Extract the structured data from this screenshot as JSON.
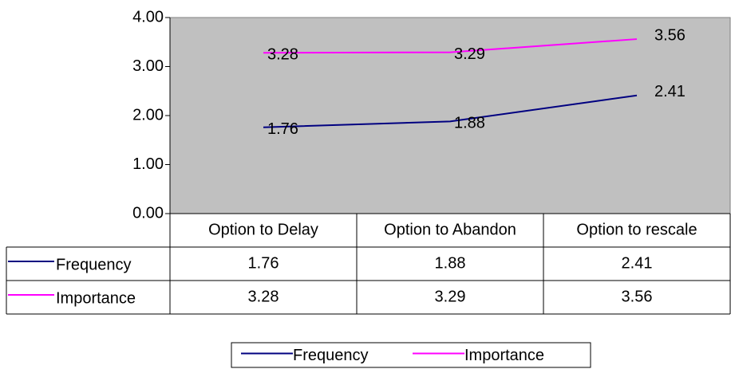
{
  "chart_data": {
    "type": "line",
    "categories": [
      "Option to Delay",
      "Option to Abandon",
      "Option to rescale"
    ],
    "series": [
      {
        "name": "Frequency",
        "color": "#000080",
        "values": [
          1.76,
          1.88,
          2.41
        ]
      },
      {
        "name": "Importance",
        "color": "#ff00ff",
        "values": [
          3.28,
          3.29,
          3.56
        ]
      }
    ],
    "ylim": [
      0,
      4
    ],
    "yticks": [
      {
        "value": 0,
        "label": "0.00"
      },
      {
        "value": 1,
        "label": "1.00"
      },
      {
        "value": 2,
        "label": "2.00"
      },
      {
        "value": 3,
        "label": "3.00"
      },
      {
        "value": 4,
        "label": "4.00"
      }
    ],
    "plot_background": "#c0c0c0",
    "legend": "bottom"
  }
}
